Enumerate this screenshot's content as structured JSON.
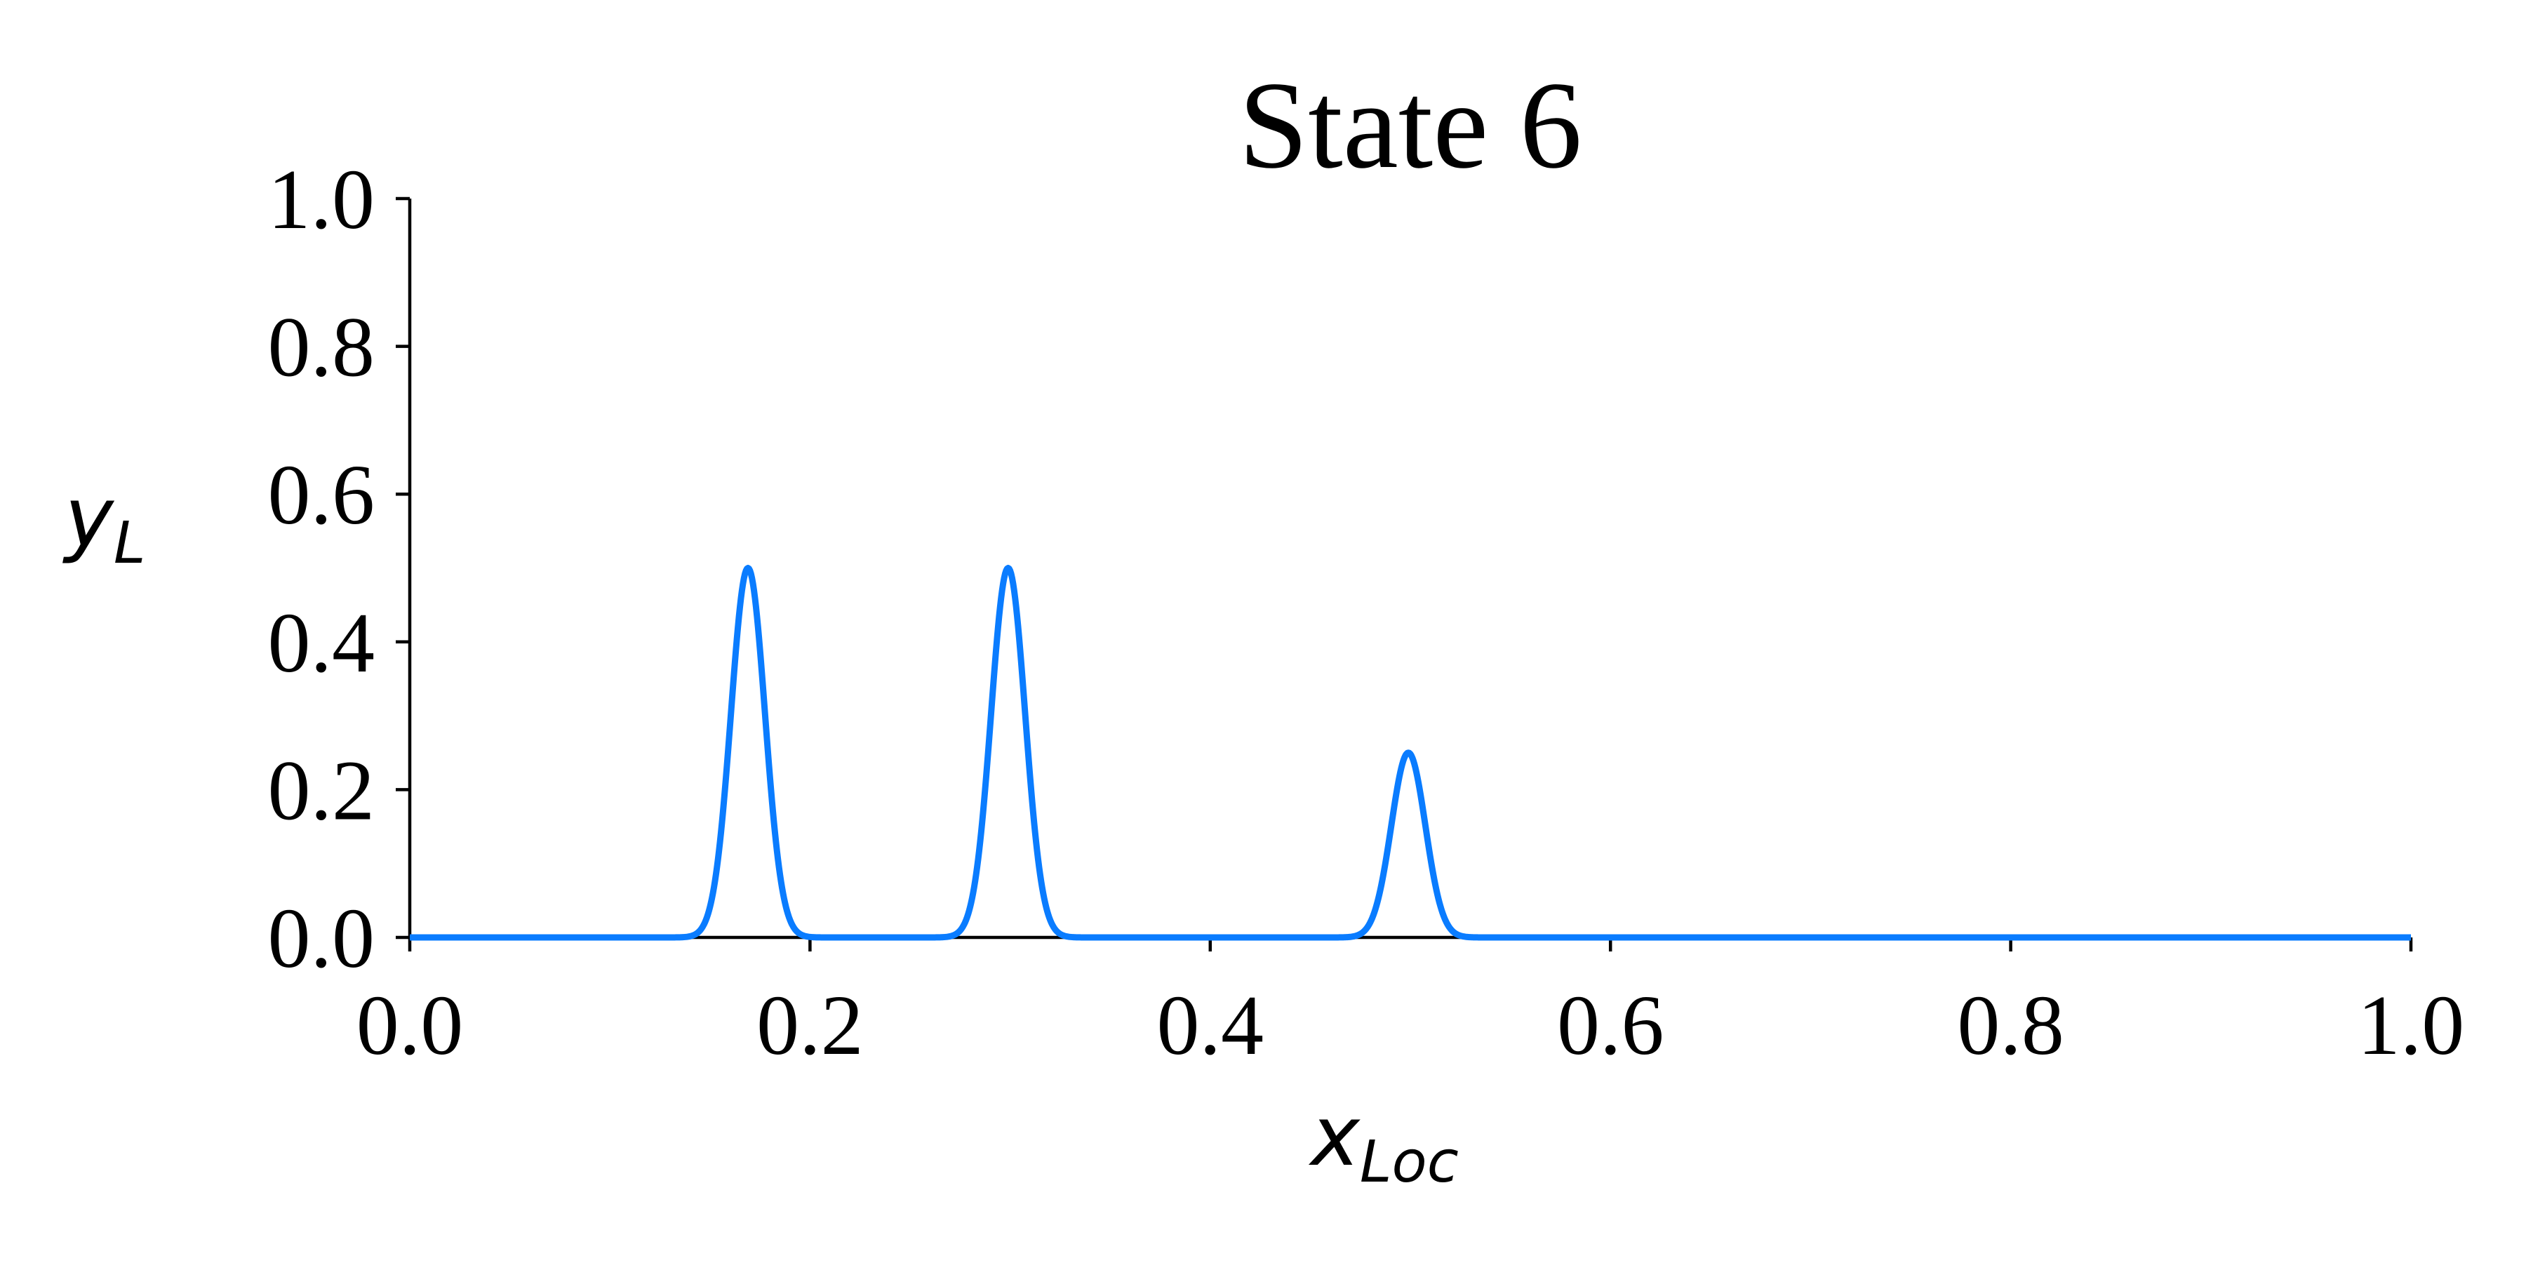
{
  "chart_data": {
    "type": "line",
    "title": "State 6",
    "xlabel": {
      "base": "x",
      "sub": "Loc"
    },
    "ylabel": {
      "base": "y",
      "sub": "L"
    },
    "xlim": [
      0.0,
      1.0
    ],
    "ylim": [
      0.0,
      1.0
    ],
    "xticks": [
      0.0,
      0.2,
      0.4,
      0.6,
      0.8,
      1.0
    ],
    "yticks": [
      0.0,
      0.2,
      0.4,
      0.6,
      0.8,
      1.0
    ],
    "xtick_labels": [
      "0.0",
      "0.2",
      "0.4",
      "0.6",
      "0.8",
      "1.0"
    ],
    "ytick_labels": [
      "0.0",
      "0.2",
      "0.4",
      "0.6",
      "0.8",
      "1.0"
    ],
    "grid": false,
    "series": [
      {
        "color": "#0a7cff",
        "peaks": [
          {
            "x": 0.169,
            "height": 0.5,
            "sigma": 0.0085
          },
          {
            "x": 0.299,
            "height": 0.5,
            "sigma": 0.0085
          },
          {
            "x": 0.499,
            "height": 0.25,
            "sigma": 0.0085
          }
        ],
        "baseline": 0.0
      }
    ]
  }
}
